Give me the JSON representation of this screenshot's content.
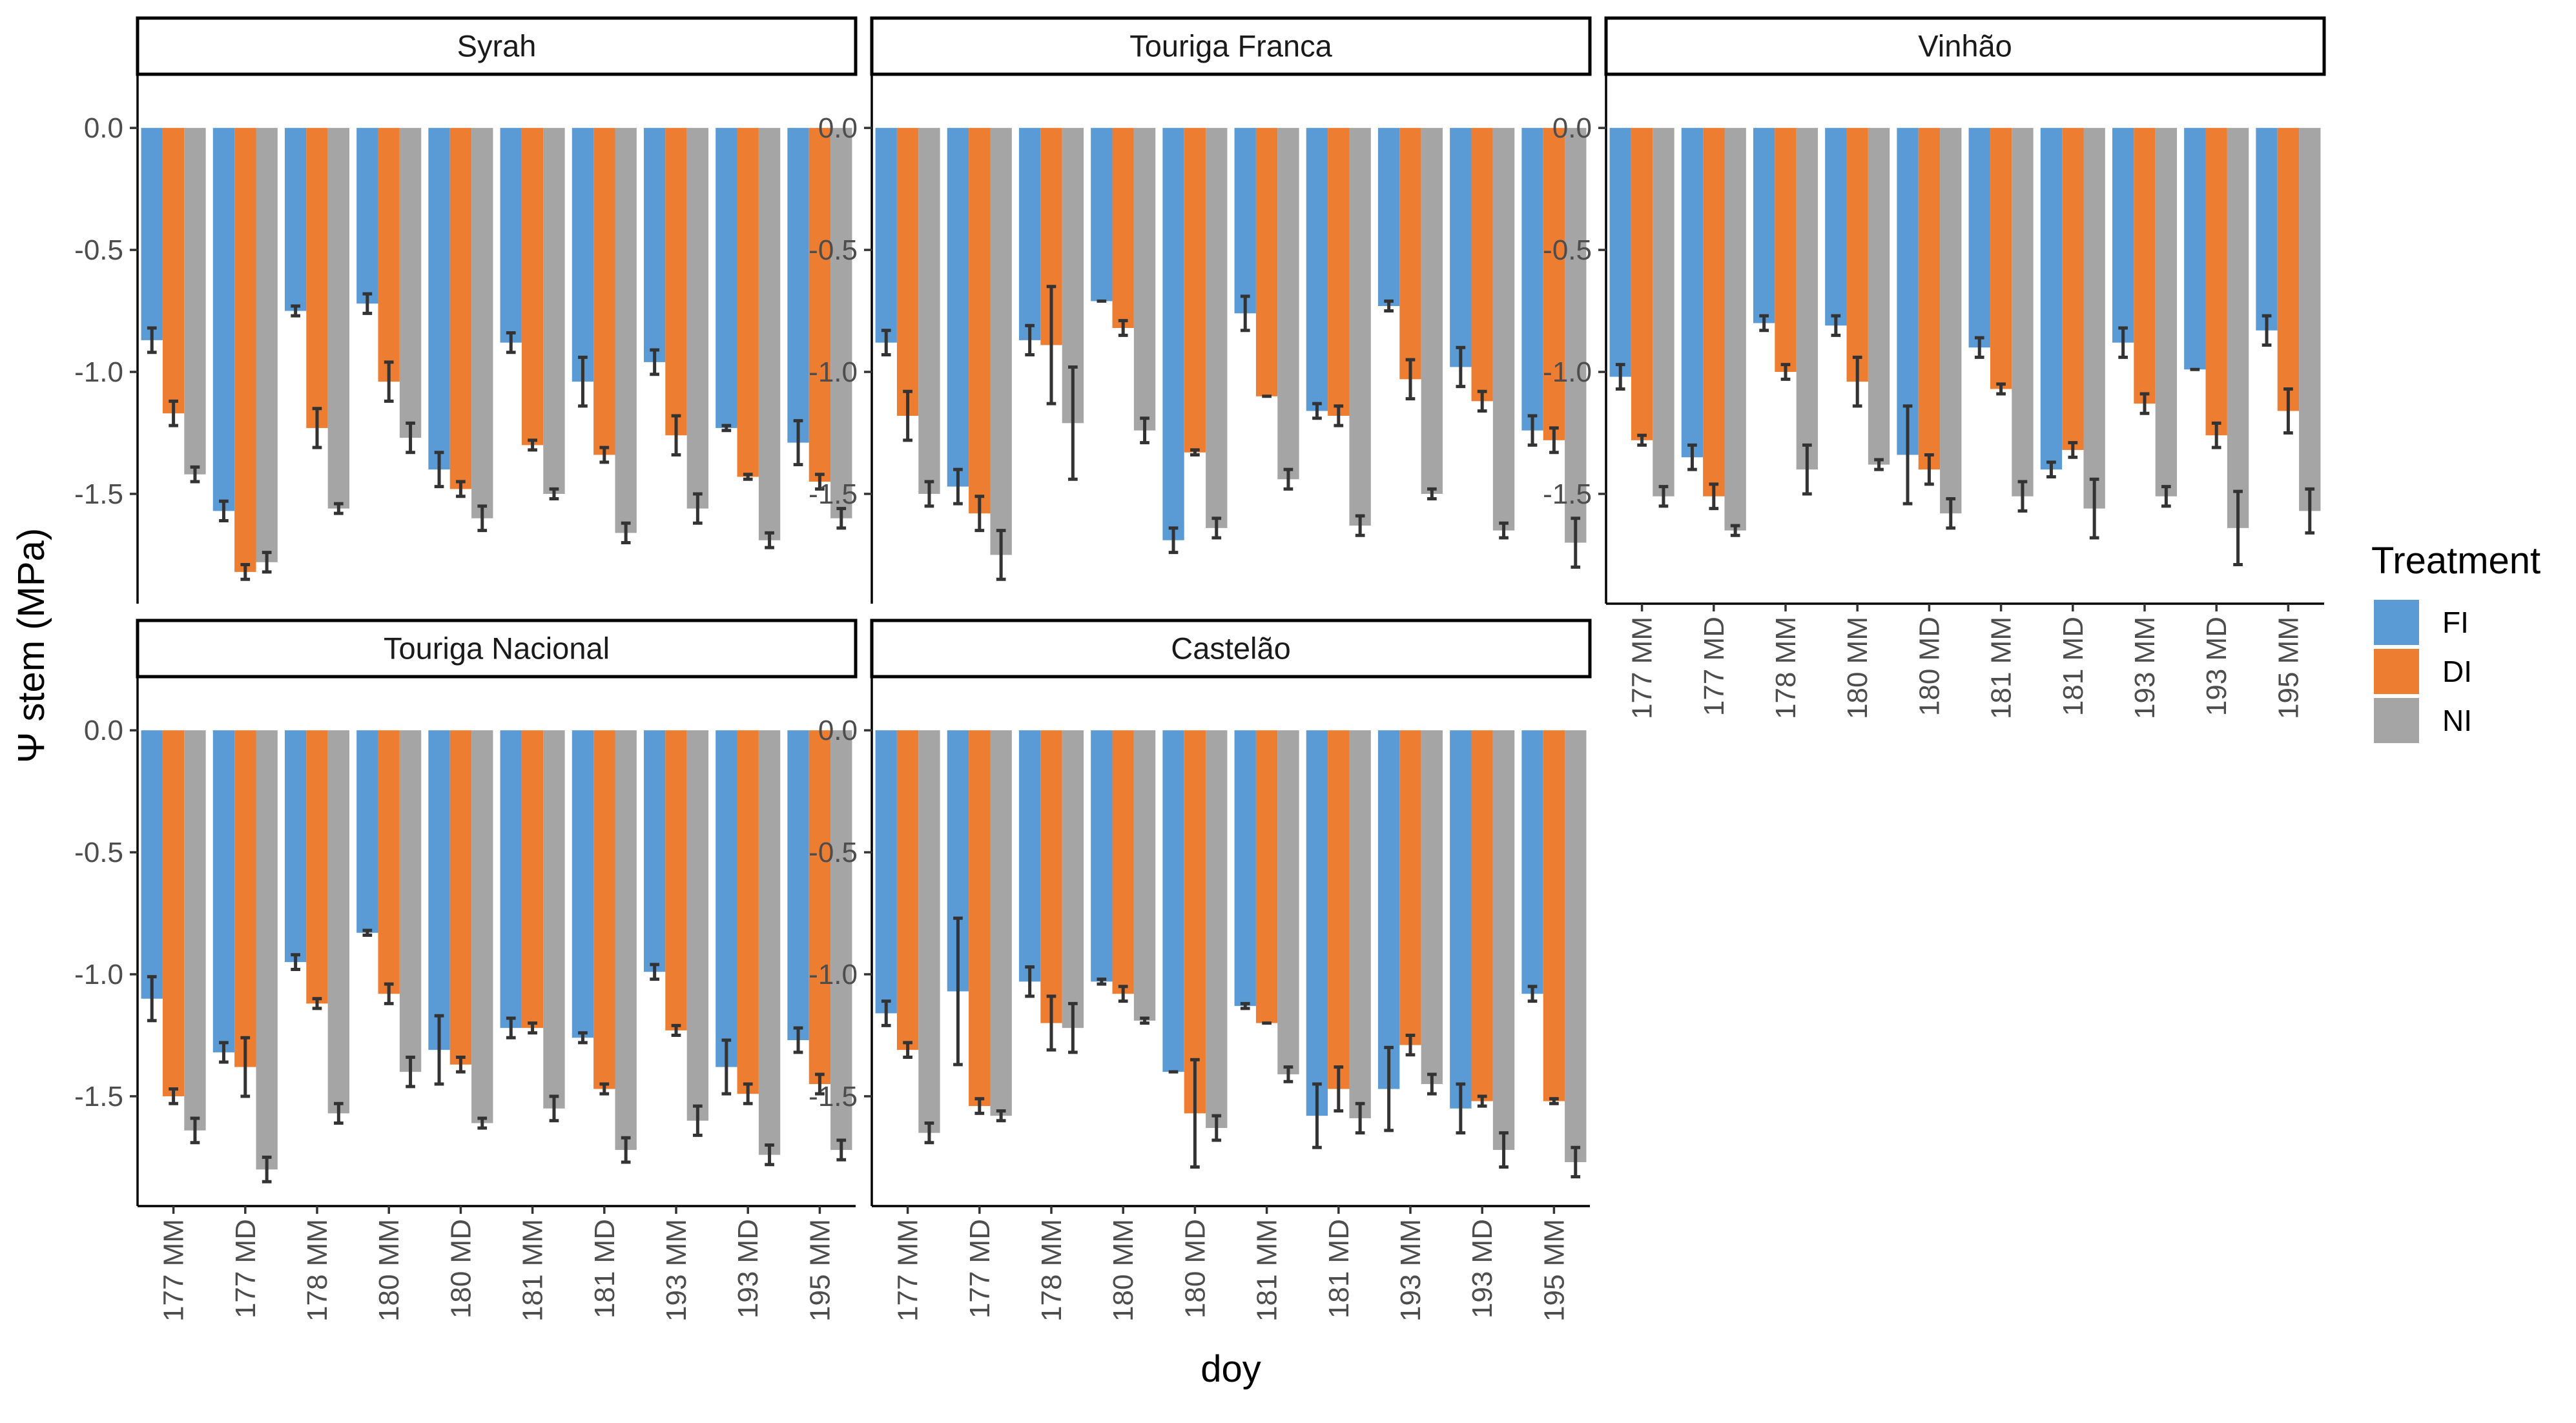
{
  "chart_data": {
    "type": "bar",
    "layout": "facet_wrap",
    "ylabel": "Ψ stem (MPa)",
    "xlabel": "doy",
    "y_ticks": [
      "0.0",
      "-0.5",
      "-1.0",
      "-1.5"
    ],
    "ylim": [
      -1.95,
      0.22
    ],
    "categories": [
      "177 MM",
      "177 MD",
      "178 MM",
      "180 MM",
      "180 MD",
      "181 MM",
      "181 MD",
      "193 MM",
      "193 MD",
      "195 MM"
    ],
    "legend": {
      "title": "Treatment",
      "position": "right",
      "items": [
        {
          "name": "FI",
          "color": "#5b9bd5"
        },
        {
          "name": "DI",
          "color": "#ed7d31"
        },
        {
          "name": "NI",
          "color": "#a5a5a5"
        }
      ]
    },
    "panels": [
      {
        "title": "Syrah",
        "series": [
          {
            "name": "FI",
            "values": [
              -0.87,
              -1.57,
              -0.75,
              -0.72,
              -1.4,
              -0.88,
              -1.04,
              -0.96,
              -1.23,
              -1.29
            ],
            "errors": [
              0.05,
              0.04,
              0.02,
              0.04,
              0.07,
              0.04,
              0.1,
              0.05,
              0.01,
              0.09
            ]
          },
          {
            "name": "DI",
            "values": [
              -1.17,
              -1.82,
              -1.23,
              -1.04,
              -1.48,
              -1.3,
              -1.34,
              -1.26,
              -1.43,
              -1.45
            ],
            "errors": [
              0.05,
              0.03,
              0.08,
              0.08,
              0.03,
              0.02,
              0.03,
              0.08,
              0.01,
              0.03
            ]
          },
          {
            "name": "NI",
            "values": [
              -1.42,
              -1.78,
              -1.56,
              -1.27,
              -1.6,
              -1.5,
              -1.66,
              -1.56,
              -1.69,
              -1.6
            ],
            "errors": [
              0.03,
              0.04,
              0.02,
              0.06,
              0.05,
              0.02,
              0.04,
              0.06,
              0.03,
              0.04
            ]
          }
        ]
      },
      {
        "title": "Touriga Franca",
        "series": [
          {
            "name": "FI",
            "values": [
              -0.88,
              -1.47,
              -0.87,
              -0.71,
              -1.69,
              -0.76,
              -1.16,
              -0.73,
              -0.98,
              -1.24
            ],
            "errors": [
              0.05,
              0.07,
              0.06,
              0.0,
              0.05,
              0.07,
              0.03,
              0.02,
              0.08,
              0.06
            ]
          },
          {
            "name": "DI",
            "values": [
              -1.18,
              -1.58,
              -0.89,
              -0.82,
              -1.33,
              -1.1,
              -1.18,
              -1.03,
              -1.12,
              -1.28
            ],
            "errors": [
              0.1,
              0.07,
              0.24,
              0.03,
              0.01,
              0.0,
              0.04,
              0.08,
              0.04,
              0.05
            ]
          },
          {
            "name": "NI",
            "values": [
              -1.5,
              -1.75,
              -1.21,
              -1.24,
              -1.64,
              -1.44,
              -1.63,
              -1.5,
              -1.65,
              -1.7
            ],
            "errors": [
              0.05,
              0.1,
              0.23,
              0.05,
              0.04,
              0.04,
              0.04,
              0.02,
              0.03,
              0.1
            ]
          }
        ]
      },
      {
        "title": "Vinhão",
        "series": [
          {
            "name": "FI",
            "values": [
              -1.02,
              -1.35,
              -0.8,
              -0.81,
              -1.34,
              -0.9,
              -1.4,
              -0.88,
              -0.99,
              -0.83
            ],
            "errors": [
              0.05,
              0.05,
              0.03,
              0.04,
              0.2,
              0.04,
              0.03,
              0.06,
              0.0,
              0.06
            ]
          },
          {
            "name": "DI",
            "values": [
              -1.28,
              -1.51,
              -1.0,
              -1.04,
              -1.4,
              -1.07,
              -1.32,
              -1.13,
              -1.26,
              -1.16
            ],
            "errors": [
              0.02,
              0.05,
              0.03,
              0.1,
              0.06,
              0.02,
              0.03,
              0.04,
              0.05,
              0.09
            ]
          },
          {
            "name": "NI",
            "values": [
              -1.51,
              -1.65,
              -1.4,
              -1.38,
              -1.58,
              -1.51,
              -1.56,
              -1.51,
              -1.64,
              -1.57
            ],
            "errors": [
              0.04,
              0.02,
              0.1,
              0.02,
              0.06,
              0.06,
              0.12,
              0.04,
              0.15,
              0.09
            ]
          }
        ]
      },
      {
        "title": "Touriga Nacional",
        "series": [
          {
            "name": "FI",
            "values": [
              -1.1,
              -1.32,
              -0.95,
              -0.83,
              -1.31,
              -1.22,
              -1.26,
              -0.99,
              -1.38,
              -1.27
            ],
            "errors": [
              0.09,
              0.04,
              0.03,
              0.01,
              0.14,
              0.04,
              0.02,
              0.03,
              0.11,
              0.05
            ]
          },
          {
            "name": "DI",
            "values": [
              -1.5,
              -1.38,
              -1.12,
              -1.08,
              -1.37,
              -1.22,
              -1.47,
              -1.23,
              -1.49,
              -1.45
            ],
            "errors": [
              0.03,
              0.12,
              0.02,
              0.04,
              0.03,
              0.02,
              0.02,
              0.02,
              0.04,
              0.04
            ]
          },
          {
            "name": "NI",
            "values": [
              -1.64,
              -1.8,
              -1.57,
              -1.4,
              -1.61,
              -1.55,
              -1.72,
              -1.6,
              -1.74,
              -1.72
            ],
            "errors": [
              0.05,
              0.05,
              0.04,
              0.06,
              0.02,
              0.05,
              0.05,
              0.06,
              0.04,
              0.04
            ]
          }
        ]
      },
      {
        "title": "Castelão",
        "series": [
          {
            "name": "FI",
            "values": [
              -1.16,
              -1.07,
              -1.03,
              -1.03,
              -1.4,
              -1.13,
              -1.58,
              -1.47,
              -1.55,
              -1.08
            ],
            "errors": [
              0.05,
              0.3,
              0.06,
              0.01,
              0.0,
              0.01,
              0.13,
              0.17,
              0.1,
              0.03
            ]
          },
          {
            "name": "DI",
            "values": [
              -1.31,
              -1.54,
              -1.2,
              -1.08,
              -1.57,
              -1.2,
              -1.47,
              -1.29,
              -1.52,
              -1.52
            ],
            "errors": [
              0.03,
              0.03,
              0.11,
              0.03,
              0.22,
              0.0,
              0.09,
              0.04,
              0.02,
              0.01
            ]
          },
          {
            "name": "NI",
            "values": [
              -1.65,
              -1.58,
              -1.22,
              -1.19,
              -1.63,
              -1.41,
              -1.59,
              -1.45,
              -1.72,
              -1.77
            ],
            "errors": [
              0.04,
              0.02,
              0.1,
              0.01,
              0.05,
              0.03,
              0.06,
              0.04,
              0.07,
              0.06
            ]
          }
        ]
      }
    ]
  }
}
